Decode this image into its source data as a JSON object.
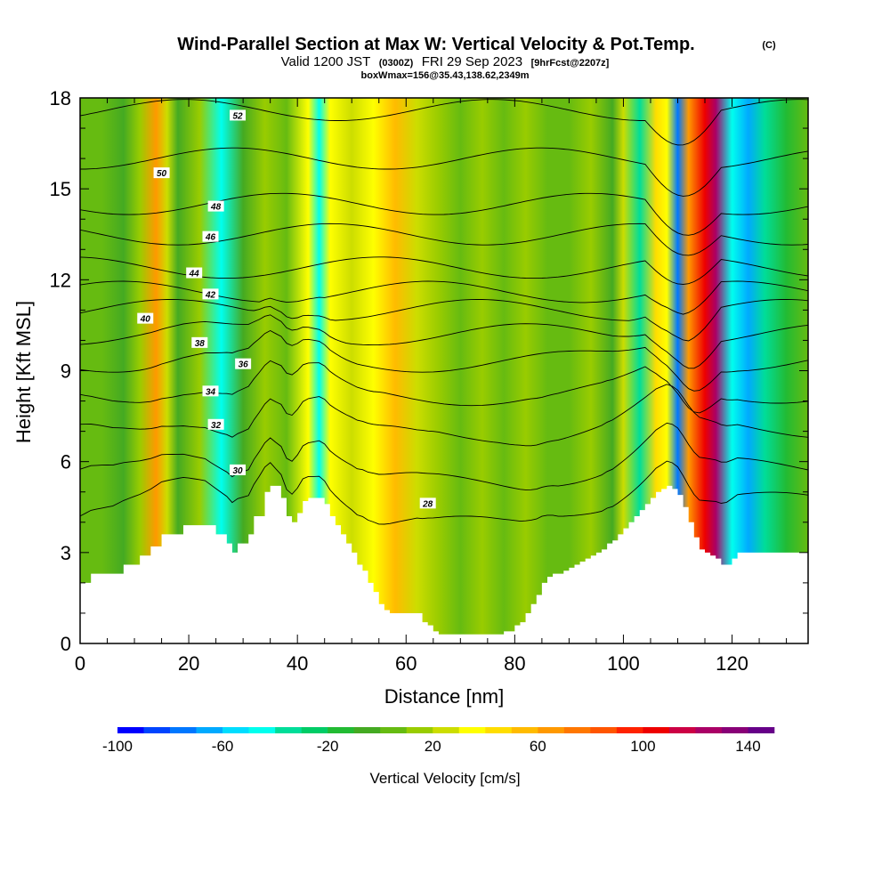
{
  "chart_data": {
    "type": "heatmap",
    "title": "Wind-Parallel Section at Max W: Vertical Velocity & Pot.Temp.",
    "title_mark": "(C)",
    "subtitle_valid": "Valid 1200 JST",
    "subtitle_utc": "(0300Z)",
    "subtitle_date": "FRI 29 Sep 2023",
    "subtitle_fcst": "[9hrFcst@2207z]",
    "box_note": "boxWmax=156@35.43,138.62,2349m",
    "xlabel": "Distance [nm]",
    "ylabel": "Height [Kft MSL]",
    "xlim": [
      0,
      134
    ],
    "ylim": [
      0,
      18
    ],
    "x_ticks": [
      "0",
      "20",
      "40",
      "60",
      "80",
      "100",
      "120"
    ],
    "y_ticks": [
      "0",
      "3",
      "6",
      "9",
      "12",
      "15",
      "18"
    ],
    "colorbar": {
      "label": "Vertical Velocity [cm/s]",
      "range": [
        -100,
        150
      ],
      "step": 10,
      "tick_labels": [
        "-100",
        "-60",
        "-20",
        "20",
        "60",
        "100",
        "140"
      ],
      "colors": [
        "#0000ff",
        "#0044ff",
        "#0077ff",
        "#00aaff",
        "#00ddff",
        "#00ffee",
        "#00dd99",
        "#00cc66",
        "#22bb33",
        "#44aa22",
        "#66bb11",
        "#99cc00",
        "#ccdd00",
        "#ffff00",
        "#ffdd00",
        "#ffbb00",
        "#ff9900",
        "#ff7700",
        "#ff5500",
        "#ff2200",
        "#ee0000",
        "#cc0044",
        "#aa0066",
        "#880077",
        "#660088"
      ]
    },
    "series": [
      {
        "name": "Vertical Velocity",
        "columns": [
          {
            "x": 0,
            "w": 4
          },
          {
            "x": 4,
            "w": 0
          },
          {
            "x": 8,
            "w": -5
          },
          {
            "x": 11,
            "w": 15
          },
          {
            "x": 14,
            "w": 60
          },
          {
            "x": 16,
            "w": 20
          },
          {
            "x": 18,
            "w": -5
          },
          {
            "x": 22,
            "w": 10
          },
          {
            "x": 26,
            "w": -50
          },
          {
            "x": 30,
            "w": -10
          },
          {
            "x": 34,
            "w": 15
          },
          {
            "x": 38,
            "w": 5
          },
          {
            "x": 42,
            "w": 30
          },
          {
            "x": 44,
            "w": -45
          },
          {
            "x": 46,
            "w": 35
          },
          {
            "x": 50,
            "w": 20
          },
          {
            "x": 54,
            "w": 30
          },
          {
            "x": 58,
            "w": 50
          },
          {
            "x": 62,
            "w": 25
          },
          {
            "x": 66,
            "w": 10
          },
          {
            "x": 70,
            "w": 5
          },
          {
            "x": 74,
            "w": 15
          },
          {
            "x": 78,
            "w": 0
          },
          {
            "x": 82,
            "w": 10
          },
          {
            "x": 86,
            "w": 5
          },
          {
            "x": 90,
            "w": 0
          },
          {
            "x": 94,
            "w": 10
          },
          {
            "x": 98,
            "w": -5
          },
          {
            "x": 100,
            "w": 20
          },
          {
            "x": 103,
            "w": -40
          },
          {
            "x": 106,
            "w": 40
          },
          {
            "x": 108,
            "w": 30
          },
          {
            "x": 110,
            "w": -80
          },
          {
            "x": 112,
            "w": 60
          },
          {
            "x": 115,
            "w": 100
          },
          {
            "x": 117,
            "w": 120
          },
          {
            "x": 120,
            "w": -50
          },
          {
            "x": 123,
            "w": -70
          },
          {
            "x": 126,
            "w": -40
          },
          {
            "x": 130,
            "w": -20
          },
          {
            "x": 134,
            "w": 0
          }
        ]
      },
      {
        "name": "Terrain",
        "x": [
          0,
          2,
          3,
          4,
          6,
          8,
          11,
          13,
          15,
          19,
          21,
          23,
          25,
          27,
          28,
          29,
          31,
          32,
          34,
          35,
          37,
          38,
          39,
          40,
          41,
          42,
          44,
          45,
          46,
          47,
          48,
          49,
          50,
          51,
          52,
          53,
          54,
          55,
          56,
          57,
          58,
          59,
          60,
          62,
          63,
          64,
          65,
          66,
          67,
          68,
          69,
          70,
          76,
          77,
          78,
          80,
          81,
          82,
          83,
          84,
          85,
          86,
          87,
          88,
          89,
          90,
          91,
          92,
          93,
          94,
          95,
          96,
          97,
          98,
          99,
          100,
          101,
          102,
          103,
          104,
          105,
          106,
          107,
          108,
          109,
          110,
          111,
          112,
          113,
          114,
          115,
          116,
          117,
          118,
          119,
          120,
          121,
          124,
          127,
          130,
          134
        ],
        "y": [
          2.0,
          2.3,
          2.3,
          2.3,
          2.3,
          2.6,
          2.9,
          3.2,
          3.6,
          3.9,
          3.9,
          3.9,
          3.6,
          3.3,
          3.0,
          3.3,
          3.6,
          4.2,
          5.0,
          5.2,
          4.8,
          4.2,
          4.0,
          4.3,
          4.7,
          4.8,
          4.8,
          4.6,
          4.2,
          3.9,
          3.6,
          3.3,
          3.0,
          2.6,
          2.4,
          2.0,
          1.7,
          1.3,
          1.1,
          1.0,
          1.0,
          1.0,
          1.0,
          1.0,
          0.7,
          0.6,
          0.4,
          0.3,
          0.3,
          0.3,
          0.3,
          0.3,
          0.3,
          0.3,
          0.4,
          0.6,
          0.7,
          1.0,
          1.3,
          1.6,
          2.0,
          2.2,
          2.3,
          2.3,
          2.4,
          2.5,
          2.6,
          2.7,
          2.8,
          2.9,
          3.0,
          3.1,
          3.3,
          3.4,
          3.6,
          3.8,
          4.0,
          4.2,
          4.4,
          4.6,
          4.8,
          5.0,
          5.1,
          5.2,
          5.1,
          4.9,
          4.5,
          4.0,
          3.5,
          3.1,
          3.0,
          2.9,
          2.8,
          2.6,
          2.6,
          2.8,
          3.0,
          3.0,
          3.0,
          3.0,
          3.0
        ]
      },
      {
        "name": "Potential Temperature",
        "contours": [
          {
            "label": "28",
            "base": 4.4,
            "pos": [
              64,
              4.6
            ]
          },
          {
            "label": "30",
            "base": 5.6,
            "pos": [
              29,
              5.7
            ]
          },
          {
            "label": "32",
            "base": 7.0,
            "pos": [
              25,
              7.2
            ]
          },
          {
            "label": "34",
            "base": 8.2,
            "pos": [
              24,
              8.3
            ]
          },
          {
            "label": "36",
            "base": 9.3,
            "pos": [
              30,
              9.2
            ]
          },
          {
            "label": "38",
            "base": 10.2,
            "pos": [
              22,
              9.9
            ]
          },
          {
            "label": "40",
            "base": 11.0,
            "pos": [
              12,
              10.7
            ]
          },
          {
            "label": "42",
            "base": 11.6,
            "pos": [
              24,
              11.5
            ]
          },
          {
            "label": "44",
            "base": 12.4,
            "pos": [
              21,
              12.2
            ]
          },
          {
            "label": "46",
            "base": 13.5,
            "pos": [
              24,
              13.4
            ]
          },
          {
            "label": "48",
            "base": 14.5,
            "pos": [
              25,
              14.4
            ]
          },
          {
            "label": "50",
            "base": 16.0,
            "pos": [
              15,
              15.5
            ]
          },
          {
            "label": "52",
            "base": 17.6,
            "pos": [
              29,
              17.4
            ]
          }
        ]
      }
    ],
    "legend": "colorbar-bottom",
    "grid": false
  }
}
